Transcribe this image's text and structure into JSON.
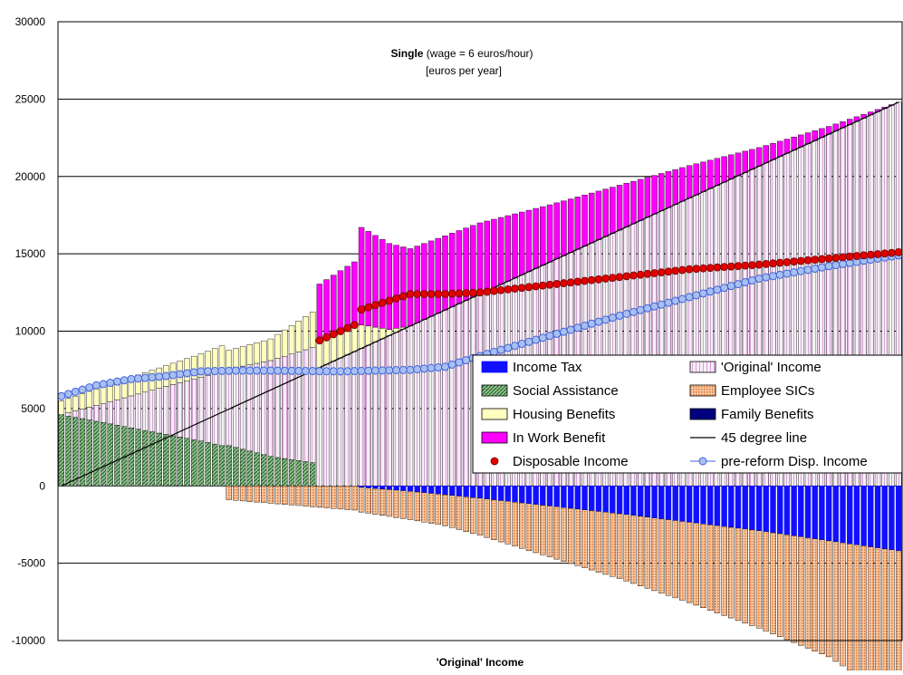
{
  "chart_data": {
    "type": "bar",
    "title": "Single",
    "title_suffix": " (wage = 6 euros/hour)",
    "subtitle": "[euros per year]",
    "xlabel": "'Original' Income",
    "ylabel": "",
    "ylim": [
      -10000,
      30000
    ],
    "yticks": [
      -10000,
      -5000,
      0,
      5000,
      10000,
      15000,
      20000,
      25000,
      30000
    ],
    "grid": true,
    "legend_position": "center-right",
    "n_points": 121,
    "x_range": [
      0,
      24800
    ],
    "stacked": true,
    "series": [
      {
        "name": "Income Tax",
        "kind": "bar",
        "color": "#1010ff",
        "pattern": "solid",
        "values_at": [
          [
            0,
            0
          ],
          [
            42,
            0
          ],
          [
            43,
            -100
          ],
          [
            50,
            -350
          ],
          [
            60,
            -800
          ],
          [
            70,
            -1300
          ],
          [
            80,
            -1800
          ],
          [
            90,
            -2350
          ],
          [
            100,
            -2900
          ],
          [
            110,
            -3550
          ],
          [
            120,
            -4200
          ]
        ]
      },
      {
        "name": "Social Assistance",
        "kind": "bar",
        "color": "#2e7d32",
        "pattern": "hatch",
        "values_at": [
          [
            0,
            4600
          ],
          [
            20,
            2900
          ],
          [
            23,
            2600
          ],
          [
            24,
            2600
          ],
          [
            30,
            1900
          ],
          [
            36,
            1500
          ],
          [
            37,
            0
          ],
          [
            120,
            0
          ]
        ]
      },
      {
        "name": "Housing Benefits",
        "kind": "bar",
        "color": "#ffffc0",
        "pattern": "solid",
        "values_at": [
          [
            0,
            900
          ],
          [
            20,
            1500
          ],
          [
            23,
            1700
          ],
          [
            24,
            1200
          ],
          [
            30,
            1400
          ],
          [
            36,
            2300
          ],
          [
            37,
            1600
          ],
          [
            42,
            1800
          ],
          [
            47,
            400
          ],
          [
            50,
            0
          ],
          [
            120,
            0
          ]
        ]
      },
      {
        "name": "In Work Benefit",
        "kind": "bar",
        "color": "#ff00ff",
        "pattern": "solid",
        "values_at": [
          [
            0,
            0
          ],
          [
            36,
            0
          ],
          [
            37,
            3800
          ],
          [
            42,
            4000
          ],
          [
            43,
            6300
          ],
          [
            50,
            5000
          ],
          [
            60,
            4600
          ],
          [
            70,
            3700
          ],
          [
            80,
            2900
          ],
          [
            90,
            2100
          ],
          [
            100,
            1200
          ],
          [
            110,
            500
          ],
          [
            120,
            0
          ]
        ]
      },
      {
        "name": "'Original' Income",
        "kind": "bar",
        "color": "#f4e4f4",
        "pattern": "vstripe",
        "values_at": [
          [
            0,
            0
          ],
          [
            120,
            24800
          ]
        ]
      },
      {
        "name": "Employee SICs",
        "kind": "bar",
        "color": "#f0a060",
        "pattern": "dots",
        "values_at": [
          [
            0,
            0
          ],
          [
            23,
            0
          ],
          [
            24,
            -900
          ],
          [
            40,
            -1500
          ],
          [
            55,
            -2000
          ],
          [
            60,
            -2400
          ],
          [
            70,
            -3300
          ],
          [
            80,
            -4200
          ],
          [
            90,
            -5200
          ],
          [
            100,
            -6300
          ],
          [
            110,
            -7500
          ],
          [
            120,
            -9800
          ]
        ]
      },
      {
        "name": "Family Benefits",
        "kind": "bar",
        "color": "#000080",
        "pattern": "solid",
        "values_at": [
          [
            0,
            0
          ],
          [
            120,
            0
          ]
        ]
      },
      {
        "name": "45 degree line",
        "kind": "line",
        "color": "#000000",
        "values_at": [
          [
            0,
            0
          ],
          [
            120,
            24800
          ]
        ]
      },
      {
        "name": "Disposable Income",
        "kind": "marker",
        "color": "#e00000",
        "values_at": [
          [
            37,
            9400
          ],
          [
            42,
            10400
          ],
          [
            43,
            11400
          ],
          [
            50,
            12400
          ],
          [
            55,
            12400
          ],
          [
            60,
            12500
          ],
          [
            70,
            13000
          ],
          [
            80,
            13500
          ],
          [
            90,
            14000
          ],
          [
            100,
            14300
          ],
          [
            110,
            14700
          ],
          [
            120,
            15100
          ]
        ]
      },
      {
        "name": "pre-reform Disp. Income",
        "kind": "line-marker",
        "color": "#4060e0",
        "values_at": [
          [
            0,
            5800
          ],
          [
            5,
            6500
          ],
          [
            10,
            6900
          ],
          [
            15,
            7100
          ],
          [
            20,
            7400
          ],
          [
            25,
            7450
          ],
          [
            30,
            7450
          ],
          [
            40,
            7400
          ],
          [
            50,
            7500
          ],
          [
            55,
            7700
          ],
          [
            60,
            8400
          ],
          [
            70,
            9700
          ],
          [
            80,
            11000
          ],
          [
            90,
            12200
          ],
          [
            100,
            13400
          ],
          [
            110,
            14200
          ],
          [
            120,
            14900
          ]
        ]
      }
    ],
    "legend_rows": [
      [
        "Income Tax",
        "'Original' Income"
      ],
      [
        "Social Assistance",
        "Employee SICs"
      ],
      [
        "Housing Benefits",
        "Family Benefits"
      ],
      [
        "In Work Benefit",
        "45 degree line"
      ],
      [
        "Disposable Income",
        "pre-reform Disp. Income"
      ]
    ]
  }
}
